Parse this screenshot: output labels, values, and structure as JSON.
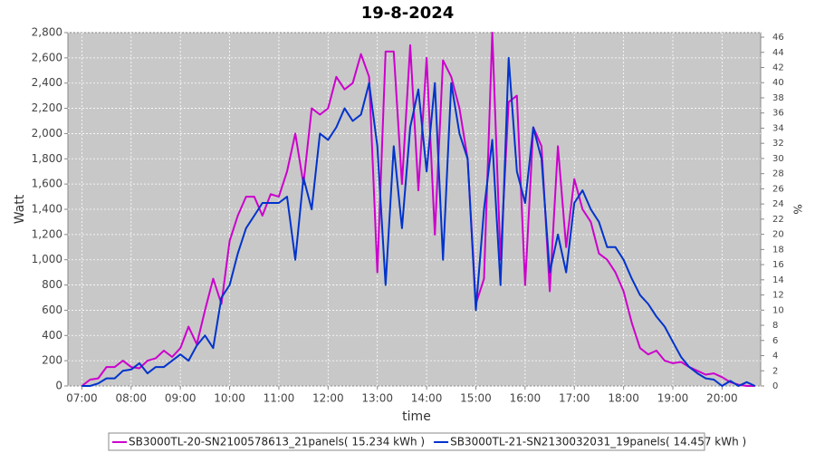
{
  "chart_data": {
    "type": "line",
    "title": "19-8-2024",
    "x_label": "time",
    "y_label": "Watt",
    "y2_label": "%",
    "x": [
      "07:00",
      "07:10",
      "07:20",
      "07:30",
      "07:40",
      "07:50",
      "08:00",
      "08:10",
      "08:20",
      "08:30",
      "08:40",
      "08:50",
      "09:00",
      "09:10",
      "09:20",
      "09:30",
      "09:40",
      "09:50",
      "10:00",
      "10:10",
      "10:20",
      "10:30",
      "10:40",
      "10:50",
      "11:00",
      "11:10",
      "11:20",
      "11:30",
      "11:40",
      "11:50",
      "12:00",
      "12:10",
      "12:20",
      "12:30",
      "12:40",
      "12:50",
      "13:00",
      "13:10",
      "13:20",
      "13:30",
      "13:40",
      "13:50",
      "14:00",
      "14:10",
      "14:20",
      "14:30",
      "14:40",
      "14:50",
      "15:00",
      "15:10",
      "15:20",
      "15:30",
      "15:40",
      "15:50",
      "16:00",
      "16:10",
      "16:20",
      "16:30",
      "16:40",
      "16:50",
      "17:00",
      "17:10",
      "17:20",
      "17:30",
      "17:40",
      "17:50",
      "18:00",
      "18:10",
      "18:20",
      "18:30",
      "18:40",
      "18:50",
      "19:00",
      "19:10",
      "19:20",
      "19:30",
      "19:40",
      "19:50",
      "20:00",
      "20:10",
      "20:20",
      "20:30",
      "20:40"
    ],
    "series": [
      {
        "name": "SB3000TL-20-SN2100578613_21panels( 15.234 kWh )",
        "color": "#cc00cc",
        "values": [
          0,
          50,
          60,
          150,
          150,
          200,
          150,
          140,
          200,
          220,
          280,
          230,
          300,
          470,
          330,
          600,
          850,
          650,
          1150,
          1350,
          1500,
          1500,
          1350,
          1520,
          1500,
          1700,
          2000,
          1600,
          2200,
          2150,
          2200,
          2450,
          2350,
          2400,
          2630,
          2450,
          900,
          2650,
          2650,
          1600,
          2700,
          1550,
          2600,
          1200,
          2580,
          2450,
          2200,
          1800,
          650,
          850,
          2800,
          1000,
          2250,
          2300,
          800,
          2050,
          1900,
          750,
          1900,
          1100,
          1640,
          1400,
          1300,
          1050,
          1000,
          900,
          750,
          500,
          300,
          250,
          280,
          200,
          180,
          190,
          150,
          120,
          90,
          100,
          70,
          30,
          10,
          0,
          0
        ]
      },
      {
        "name": "SB3000TL-21-SN2130032031_19panels( 14.457 kWh )",
        "color": "#0033cc",
        "values": [
          0,
          0,
          20,
          60,
          60,
          120,
          130,
          180,
          100,
          150,
          150,
          200,
          250,
          200,
          320,
          400,
          300,
          700,
          800,
          1050,
          1250,
          1350,
          1450,
          1450,
          1450,
          1500,
          1000,
          1650,
          1400,
          2000,
          1950,
          2050,
          2200,
          2100,
          2150,
          2400,
          1900,
          800,
          1900,
          1250,
          2050,
          2350,
          1700,
          2400,
          1000,
          2400,
          2000,
          1800,
          600,
          1400,
          1950,
          800,
          2600,
          1700,
          1450,
          2050,
          1800,
          900,
          1200,
          900,
          1450,
          1550,
          1400,
          1300,
          1100,
          1100,
          1000,
          850,
          720,
          650,
          550,
          470,
          350,
          230,
          150,
          100,
          60,
          50,
          0,
          40,
          0,
          30,
          0
        ]
      }
    ],
    "xlim": [
      "06:43",
      "20:47"
    ],
    "xticks": [
      "07:00",
      "08:00",
      "09:00",
      "10:00",
      "11:00",
      "12:00",
      "13:00",
      "14:00",
      "15:00",
      "16:00",
      "17:00",
      "18:00",
      "19:00",
      "20:00"
    ],
    "ylim": [
      0,
      2800
    ],
    "yticks": [
      0,
      200,
      400,
      600,
      800,
      {
        "value": 1000,
        "label": "1,000"
      },
      {
        "value": 1200,
        "label": "1,200"
      },
      {
        "value": 1400,
        "label": "1,400"
      },
      {
        "value": 1600,
        "label": "1,600"
      },
      {
        "value": 1800,
        "label": "1,800"
      },
      {
        "value": 2000,
        "label": "2,000"
      },
      {
        "value": 2200,
        "label": "2,200"
      },
      {
        "value": 2400,
        "label": "2,400"
      },
      {
        "value": 2600,
        "label": "2,600"
      },
      {
        "value": 2800,
        "label": "2,800"
      }
    ],
    "y2lim": [
      0,
      46.6
    ],
    "y2ticks": [
      0,
      2,
      4,
      6,
      8,
      10,
      12,
      14,
      16,
      18,
      20,
      22,
      24,
      26,
      28,
      30,
      32,
      34,
      36,
      38,
      40,
      42,
      44,
      46
    ],
    "grid": true,
    "legend": "bottom",
    "plot_color": "#c8c8c8"
  }
}
